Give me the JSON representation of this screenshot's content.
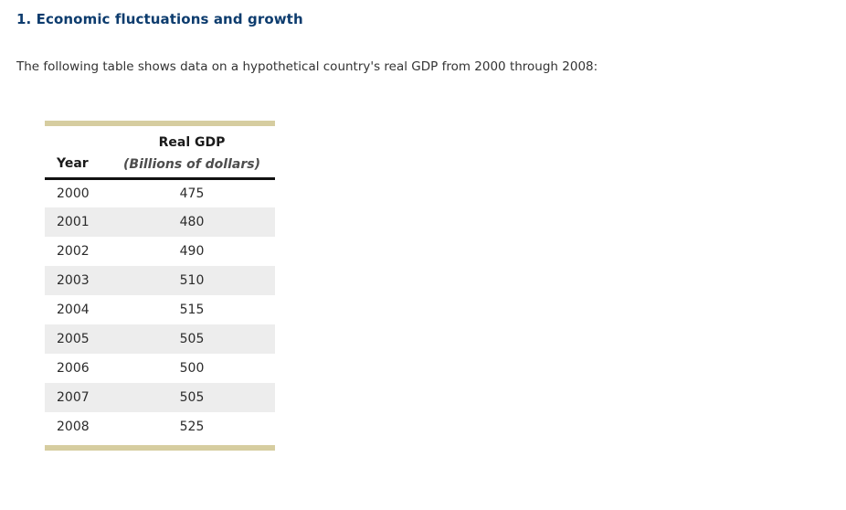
{
  "page": {
    "title": "1. Economic fluctuations and growth",
    "intro": "The following table shows data on a hypothetical country's real GDP from 2000 through 2008:"
  },
  "table": {
    "year_header": "Year",
    "value_header_line1": "Real GDP",
    "value_header_line2": "(Billions of dollars)",
    "rows": [
      {
        "year": "2000",
        "gdp": "475"
      },
      {
        "year": "2001",
        "gdp": "480"
      },
      {
        "year": "2002",
        "gdp": "490"
      },
      {
        "year": "2003",
        "gdp": "510"
      },
      {
        "year": "2004",
        "gdp": "515"
      },
      {
        "year": "2005",
        "gdp": "505"
      },
      {
        "year": "2006",
        "gdp": "500"
      },
      {
        "year": "2007",
        "gdp": "505"
      },
      {
        "year": "2008",
        "gdp": "525"
      }
    ]
  },
  "colors": {
    "title_navy": "#0d3c6e",
    "body_text": "#333333",
    "table_accent_border": "#d6cda0",
    "row_alternate": "#ededed",
    "header_rule": "#111111",
    "header_italic_gray": "#4d4d4d"
  }
}
